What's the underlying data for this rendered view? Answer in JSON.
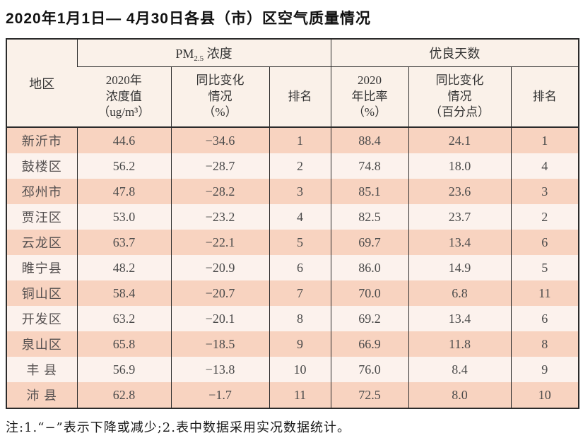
{
  "title": "2020年1月1日— 4月30日各县（市）区空气质量情况",
  "table": {
    "region_header": "地区",
    "pm_group": {
      "prefix": "PM",
      "sub": "2.5",
      "suffix": " 浓度"
    },
    "good_days_header": "优良天数",
    "subheaders": [
      "2020年\n浓度值\n（ug/m³）",
      "同比变化\n情况\n（%）",
      "排名",
      "2020\n年比率\n（%）",
      "同比变化\n情况\n（百分点）",
      "排名"
    ],
    "rows": [
      {
        "region": "新沂市",
        "cells": [
          "44.6",
          "−34.6",
          "1",
          "88.4",
          "24.1",
          "1"
        ]
      },
      {
        "region": "鼓楼区",
        "cells": [
          "56.2",
          "−28.7",
          "2",
          "74.8",
          "18.0",
          "4"
        ]
      },
      {
        "region": "邳州市",
        "cells": [
          "47.8",
          "−28.2",
          "3",
          "85.1",
          "23.6",
          "3"
        ]
      },
      {
        "region": "贾汪区",
        "cells": [
          "53.0",
          "−23.2",
          "4",
          "82.5",
          "23.7",
          "2"
        ]
      },
      {
        "region": "云龙区",
        "cells": [
          "63.7",
          "−22.1",
          "5",
          "69.7",
          "13.4",
          "6"
        ]
      },
      {
        "region": "睢宁县",
        "cells": [
          "48.2",
          "−20.9",
          "6",
          "86.0",
          "14.9",
          "5"
        ]
      },
      {
        "region": "铜山区",
        "cells": [
          "58.4",
          "−20.7",
          "7",
          "70.0",
          "6.8",
          "11"
        ]
      },
      {
        "region": "开发区",
        "cells": [
          "63.2",
          "−20.1",
          "8",
          "69.2",
          "13.4",
          "6"
        ]
      },
      {
        "region": "泉山区",
        "cells": [
          "65.8",
          "−18.5",
          "9",
          "66.9",
          "11.8",
          "8"
        ]
      },
      {
        "region": "丰 县",
        "cells": [
          "56.9",
          "−13.8",
          "10",
          "76.0",
          "8.4",
          "9"
        ]
      },
      {
        "region": "沛 县",
        "cells": [
          "62.8",
          "−1.7",
          "11",
          "72.5",
          "8.0",
          "10"
        ]
      }
    ]
  },
  "footnote": "注:1.“−”表示下降或减少;2.表中数据采用实况数据统计。",
  "colors": {
    "row_odd": "#f8d3c0",
    "row_even": "#fcf2ed",
    "header_bg": "#faf1e9",
    "border": "#2b2b2b"
  }
}
